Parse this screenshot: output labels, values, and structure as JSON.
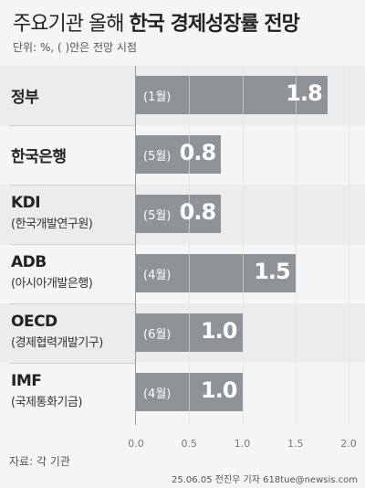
{
  "title": {
    "part1": "주요기관 올해 ",
    "part2": "한국 경제성장률 전망"
  },
  "unit_note": "단위: %, ( )안은 전망 시점",
  "chart_data": {
    "type": "bar",
    "orientation": "horizontal",
    "categories": [
      {
        "name": "정부",
        "sub": "",
        "when": "(1월)"
      },
      {
        "name": "한국은행",
        "sub": "",
        "when": "(5월)"
      },
      {
        "name": "KDI",
        "sub": "(한국개발연구원)",
        "when": "(5월)"
      },
      {
        "name": "ADB",
        "sub": "(아시아개발은행)",
        "when": "(4월)"
      },
      {
        "name": "OECD",
        "sub": "(경제협력개발기구)",
        "when": "(6월)"
      },
      {
        "name": "IMF",
        "sub": "(국제통화기금)",
        "when": "(4월)"
      }
    ],
    "values": [
      1.8,
      0.8,
      0.8,
      1.5,
      1.0,
      1.0
    ],
    "value_labels": [
      "1.8",
      "0.8",
      "0.8",
      "1.5",
      "1.0",
      "1.0"
    ],
    "xticks": [
      "0.0",
      "0.5",
      "1.0",
      "1.5",
      "2.0"
    ],
    "xlim": [
      0,
      2.0
    ],
    "bar_color": "#8e9397"
  },
  "source": "자료: 각 기관",
  "credit": "25.06.05 전진우 기자 618tue@newsis.com"
}
